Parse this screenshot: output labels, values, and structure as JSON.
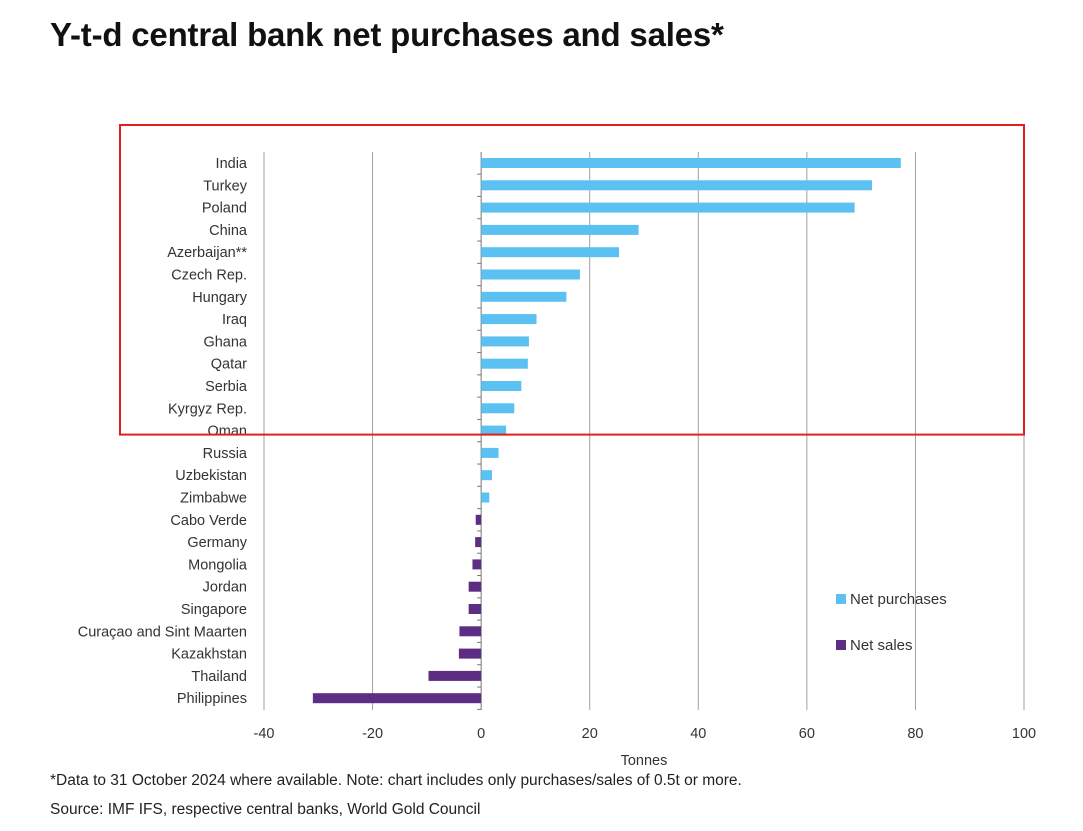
{
  "title": "Y-t-d central bank net purchases and sales*",
  "footnote": "*Data to 31 October 2024 where available. Note: chart includes only purchases/sales of 0.5t or more.",
  "source": "Source: IMF IFS, respective central banks, World Gold Council",
  "chart_data": {
    "type": "bar",
    "orientation": "horizontal",
    "categories": [
      "India",
      "Turkey",
      "Poland",
      "China",
      "Azerbaijan**",
      "Czech Rep.",
      "Hungary",
      "Iraq",
      "Ghana",
      "Qatar",
      "Serbia",
      "Kyrgyz Rep.",
      "Oman",
      "Russia",
      "Uzbekistan",
      "Zimbabwe",
      "Cabo Verde",
      "Germany",
      "Mongolia",
      "Jordan",
      "Singapore",
      "Curaçao and Sint Maarten",
      "Kazakhstan",
      "Thailand",
      "Philippines"
    ],
    "series": [
      {
        "name": "Net purchases",
        "color": "#5bc0f2",
        "values": [
          77.3,
          72.0,
          68.8,
          29.0,
          25.4,
          18.2,
          15.7,
          10.2,
          8.8,
          8.6,
          7.4,
          6.1,
          4.6,
          3.2,
          2.0,
          1.5,
          null,
          null,
          null,
          null,
          null,
          null,
          null,
          null,
          null
        ]
      },
      {
        "name": "Net sales",
        "color": "#5c2d82",
        "values": [
          null,
          null,
          null,
          null,
          null,
          null,
          null,
          null,
          null,
          null,
          null,
          null,
          null,
          null,
          null,
          null,
          -1.0,
          -1.1,
          -1.6,
          -2.3,
          -2.3,
          -4.0,
          -4.1,
          -9.7,
          -31.0
        ]
      }
    ],
    "xlabel": "Tonnes",
    "ylabel": "",
    "xlim": [
      -40,
      100
    ],
    "xticks": [
      -40,
      -20,
      0,
      20,
      40,
      60,
      80,
      100
    ],
    "grid": "vertical",
    "legend": "right",
    "highlight": {
      "from": "India",
      "to": "Oman",
      "color": "#e02020"
    }
  }
}
